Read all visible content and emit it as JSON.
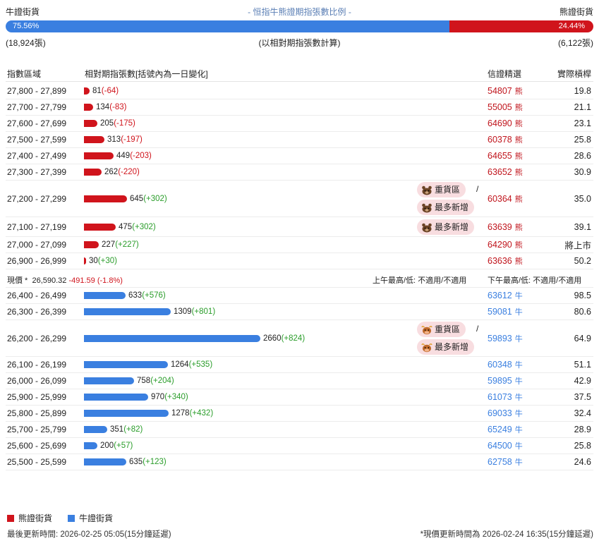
{
  "header": {
    "bull_label": "牛證街貨",
    "title": "- 恒指牛熊證期指張數比例 -",
    "bear_label": "熊證街貨",
    "bull_pct": "75.56%",
    "bear_pct": "24.44%",
    "bull_fraction": 0.7556,
    "bull_count": "(18,924張)",
    "calc_note": "(以相對期指張數計算)",
    "bear_count": "(6,122張)"
  },
  "columns": {
    "range": "指數區域",
    "contracts": "相對期指張數[括號內為一日變化]",
    "code": "信證精選",
    "ratio": "實際槓桿"
  },
  "bear_rows": [
    {
      "range": "27,800 - 27,899",
      "count": 81,
      "count_text": "81",
      "change": "(-64)",
      "code": "54807",
      "suffix": "熊",
      "ratio": "19.8"
    },
    {
      "range": "27,700 - 27,799",
      "count": 134,
      "count_text": "134",
      "change": "(-83)",
      "code": "55005",
      "suffix": "熊",
      "ratio": "21.1"
    },
    {
      "range": "27,600 - 27,699",
      "count": 205,
      "count_text": "205",
      "change": "(-175)",
      "code": "64690",
      "suffix": "熊",
      "ratio": "23.1"
    },
    {
      "range": "27,500 - 27,599",
      "count": 313,
      "count_text": "313",
      "change": "(-197)",
      "code": "60378",
      "suffix": "熊",
      "ratio": "25.8"
    },
    {
      "range": "27,400 - 27,499",
      "count": 449,
      "count_text": "449",
      "change": "(-203)",
      "code": "64655",
      "suffix": "熊",
      "ratio": "28.6"
    },
    {
      "range": "27,300 - 27,399",
      "count": 262,
      "count_text": "262",
      "change": "(-220)",
      "code": "63652",
      "suffix": "熊",
      "ratio": "30.9"
    },
    {
      "range": "27,200 - 27,299",
      "count": 645,
      "count_text": "645",
      "change": "(+302)",
      "code": "60364",
      "suffix": "熊",
      "ratio": "35.0",
      "badges": [
        "重貨區",
        "最多新增"
      ]
    },
    {
      "range": "27,100 - 27,199",
      "count": 475,
      "count_text": "475",
      "change": "(+302)",
      "code": "63639",
      "suffix": "熊",
      "ratio": "39.1",
      "badges": [
        "最多新增"
      ]
    },
    {
      "range": "27,000 - 27,099",
      "count": 227,
      "count_text": "227",
      "change": "(+227)",
      "code": "64290",
      "suffix": "熊",
      "ratio": "將上市"
    },
    {
      "range": "26,900 - 26,999",
      "count": 30,
      "count_text": "30",
      "change": "(+30)",
      "code": "63636",
      "suffix": "熊",
      "ratio": "50.2"
    }
  ],
  "price": {
    "label": "現價 *",
    "value": "26,590.32",
    "change": "-491.59 (-1.8%)",
    "am": "上午最高/低: 不適用/不適用",
    "pm": "下午最高/低: 不適用/不適用"
  },
  "bull_rows": [
    {
      "range": "26,400 - 26,499",
      "count": 633,
      "count_text": "633",
      "change": "(+576)",
      "code": "63612",
      "suffix": "牛",
      "ratio": "98.5"
    },
    {
      "range": "26,300 - 26,399",
      "count": 1309,
      "count_text": "1309",
      "change": "(+801)",
      "code": "59081",
      "suffix": "牛",
      "ratio": "80.6"
    },
    {
      "range": "26,200 - 26,299",
      "count": 2660,
      "count_text": "2660",
      "change": "(+824)",
      "code": "59893",
      "suffix": "牛",
      "ratio": "64.9",
      "badges": [
        "重貨區",
        "最多新增"
      ]
    },
    {
      "range": "26,100 - 26,199",
      "count": 1264,
      "count_text": "1264",
      "change": "(+535)",
      "code": "60348",
      "suffix": "牛",
      "ratio": "51.1"
    },
    {
      "range": "26,000 - 26,099",
      "count": 758,
      "count_text": "758",
      "change": "(+204)",
      "code": "59895",
      "suffix": "牛",
      "ratio": "42.9"
    },
    {
      "range": "25,900 - 25,999",
      "count": 970,
      "count_text": "970",
      "change": "(+340)",
      "code": "61073",
      "suffix": "牛",
      "ratio": "37.5"
    },
    {
      "range": "25,800 - 25,899",
      "count": 1278,
      "count_text": "1278",
      "change": "(+432)",
      "code": "69033",
      "suffix": "牛",
      "ratio": "32.4"
    },
    {
      "range": "25,700 - 25,799",
      "count": 351,
      "count_text": "351",
      "change": "(+82)",
      "code": "65249",
      "suffix": "牛",
      "ratio": "28.9"
    },
    {
      "range": "25,600 - 25,699",
      "count": 200,
      "count_text": "200",
      "change": "(+57)",
      "code": "64500",
      "suffix": "牛",
      "ratio": "25.8"
    },
    {
      "range": "25,500 - 25,599",
      "count": 635,
      "count_text": "635",
      "change": "(+123)",
      "code": "62758",
      "suffix": "牛",
      "ratio": "24.6"
    }
  ],
  "legend": {
    "bear": "熊證街貨",
    "bull": "牛證街貨"
  },
  "footer": {
    "last_update": "最後更新時間: 2026-02-25 05:05(15分鐘延遲)",
    "price_update": "*現價更新時間為 2026-02-24 16:35(15分鐘延遲)"
  },
  "colors": {
    "bear": "#d0141c",
    "bull": "#3a7fe0",
    "positive": "#2a9d2a",
    "badge_bg": "#f8dde0"
  }
}
